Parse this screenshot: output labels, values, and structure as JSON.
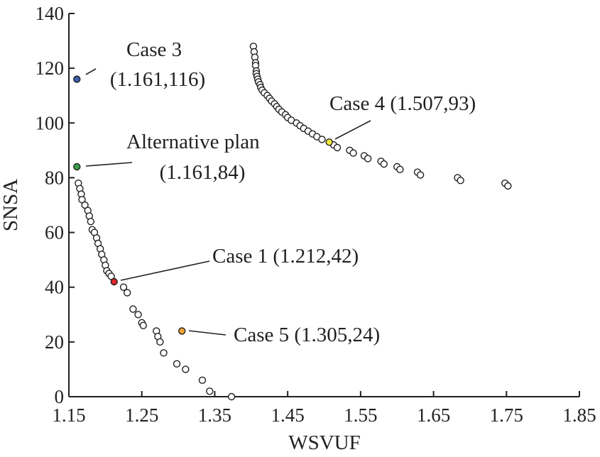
{
  "chart_data": {
    "type": "scatter",
    "xlabel": "WSVUF",
    "ylabel": "SNSA",
    "xlim": [
      1.15,
      1.85
    ],
    "ylim": [
      0,
      140
    ],
    "xticks": [
      "1.15",
      "1.25",
      "1.35",
      "1.45",
      "1.55",
      "1.65",
      "1.75",
      "1.85"
    ],
    "yticks": [
      "0",
      "20",
      "40",
      "60",
      "80",
      "100",
      "120",
      "140"
    ],
    "grid": false,
    "pareto_front_1": [
      [
        1.163,
        78
      ],
      [
        1.165,
        76
      ],
      [
        1.167,
        74
      ],
      [
        1.168,
        72
      ],
      [
        1.172,
        70
      ],
      [
        1.176,
        68
      ],
      [
        1.178,
        66
      ],
      [
        1.18,
        64
      ],
      [
        1.182,
        61
      ],
      [
        1.185,
        60
      ],
      [
        1.188,
        58
      ],
      [
        1.19,
        56
      ],
      [
        1.193,
        54
      ],
      [
        1.195,
        52
      ],
      [
        1.198,
        50
      ],
      [
        1.2,
        48
      ],
      [
        1.202,
        46
      ],
      [
        1.205,
        45
      ],
      [
        1.208,
        44
      ],
      [
        1.225,
        40
      ],
      [
        1.23,
        38
      ],
      [
        1.238,
        32
      ],
      [
        1.245,
        30
      ],
      [
        1.25,
        27
      ],
      [
        1.252,
        26
      ],
      [
        1.27,
        24
      ],
      [
        1.272,
        22
      ],
      [
        1.275,
        20
      ],
      [
        1.28,
        16
      ],
      [
        1.298,
        12
      ],
      [
        1.31,
        10
      ],
      [
        1.333,
        6
      ],
      [
        1.343,
        2
      ],
      [
        1.373,
        0
      ]
    ],
    "pareto_front_2": [
      [
        1.403,
        128
      ],
      [
        1.404,
        126
      ],
      [
        1.405,
        124
      ],
      [
        1.406,
        122
      ],
      [
        1.406,
        121
      ],
      [
        1.407,
        119
      ],
      [
        1.407,
        118
      ],
      [
        1.408,
        117
      ],
      [
        1.409,
        116
      ],
      [
        1.41,
        115
      ],
      [
        1.412,
        114
      ],
      [
        1.413,
        113
      ],
      [
        1.415,
        112
      ],
      [
        1.418,
        111
      ],
      [
        1.422,
        110
      ],
      [
        1.425,
        109
      ],
      [
        1.428,
        108
      ],
      [
        1.432,
        107
      ],
      [
        1.435,
        106
      ],
      [
        1.438,
        105
      ],
      [
        1.442,
        104
      ],
      [
        1.447,
        103
      ],
      [
        1.45,
        102
      ],
      [
        1.455,
        101
      ],
      [
        1.462,
        100
      ],
      [
        1.467,
        99
      ],
      [
        1.472,
        98
      ],
      [
        1.478,
        97
      ],
      [
        1.484,
        96
      ],
      [
        1.49,
        95
      ],
      [
        1.497,
        94
      ],
      [
        1.513,
        92
      ],
      [
        1.518,
        91
      ],
      [
        1.535,
        90
      ],
      [
        1.54,
        89
      ],
      [
        1.555,
        88
      ],
      [
        1.56,
        87
      ],
      [
        1.578,
        86
      ],
      [
        1.582,
        85
      ],
      [
        1.6,
        84
      ],
      [
        1.604,
        83
      ],
      [
        1.628,
        82
      ],
      [
        1.632,
        81
      ],
      [
        1.683,
        80
      ],
      [
        1.687,
        79
      ],
      [
        1.748,
        78
      ],
      [
        1.752,
        77
      ]
    ],
    "highlighted_points": [
      {
        "name": "Case 3",
        "label_line1": "Case 3",
        "label_line2": "(1.161,116)",
        "x": 1.161,
        "y": 116,
        "color": "#3a5ea8"
      },
      {
        "name": "Alternative plan",
        "label_line1": "Alternative plan",
        "label_line2": "(1.161,84)",
        "x": 1.161,
        "y": 84,
        "color": "#3aa14a"
      },
      {
        "name": "Case 1",
        "label_line1": "Case 1 (1.212,42)",
        "label_line2": "",
        "x": 1.212,
        "y": 42,
        "color": "#d9262b"
      },
      {
        "name": "Case 5",
        "label_line1": "Case 5 (1.305,24)",
        "label_line2": "",
        "x": 1.305,
        "y": 24,
        "color": "#f0a531"
      },
      {
        "name": "Case 4",
        "label_line1": "Case 4 (1.507,93)",
        "label_line2": "",
        "x": 1.507,
        "y": 93,
        "color": "#eeea3a"
      }
    ]
  }
}
